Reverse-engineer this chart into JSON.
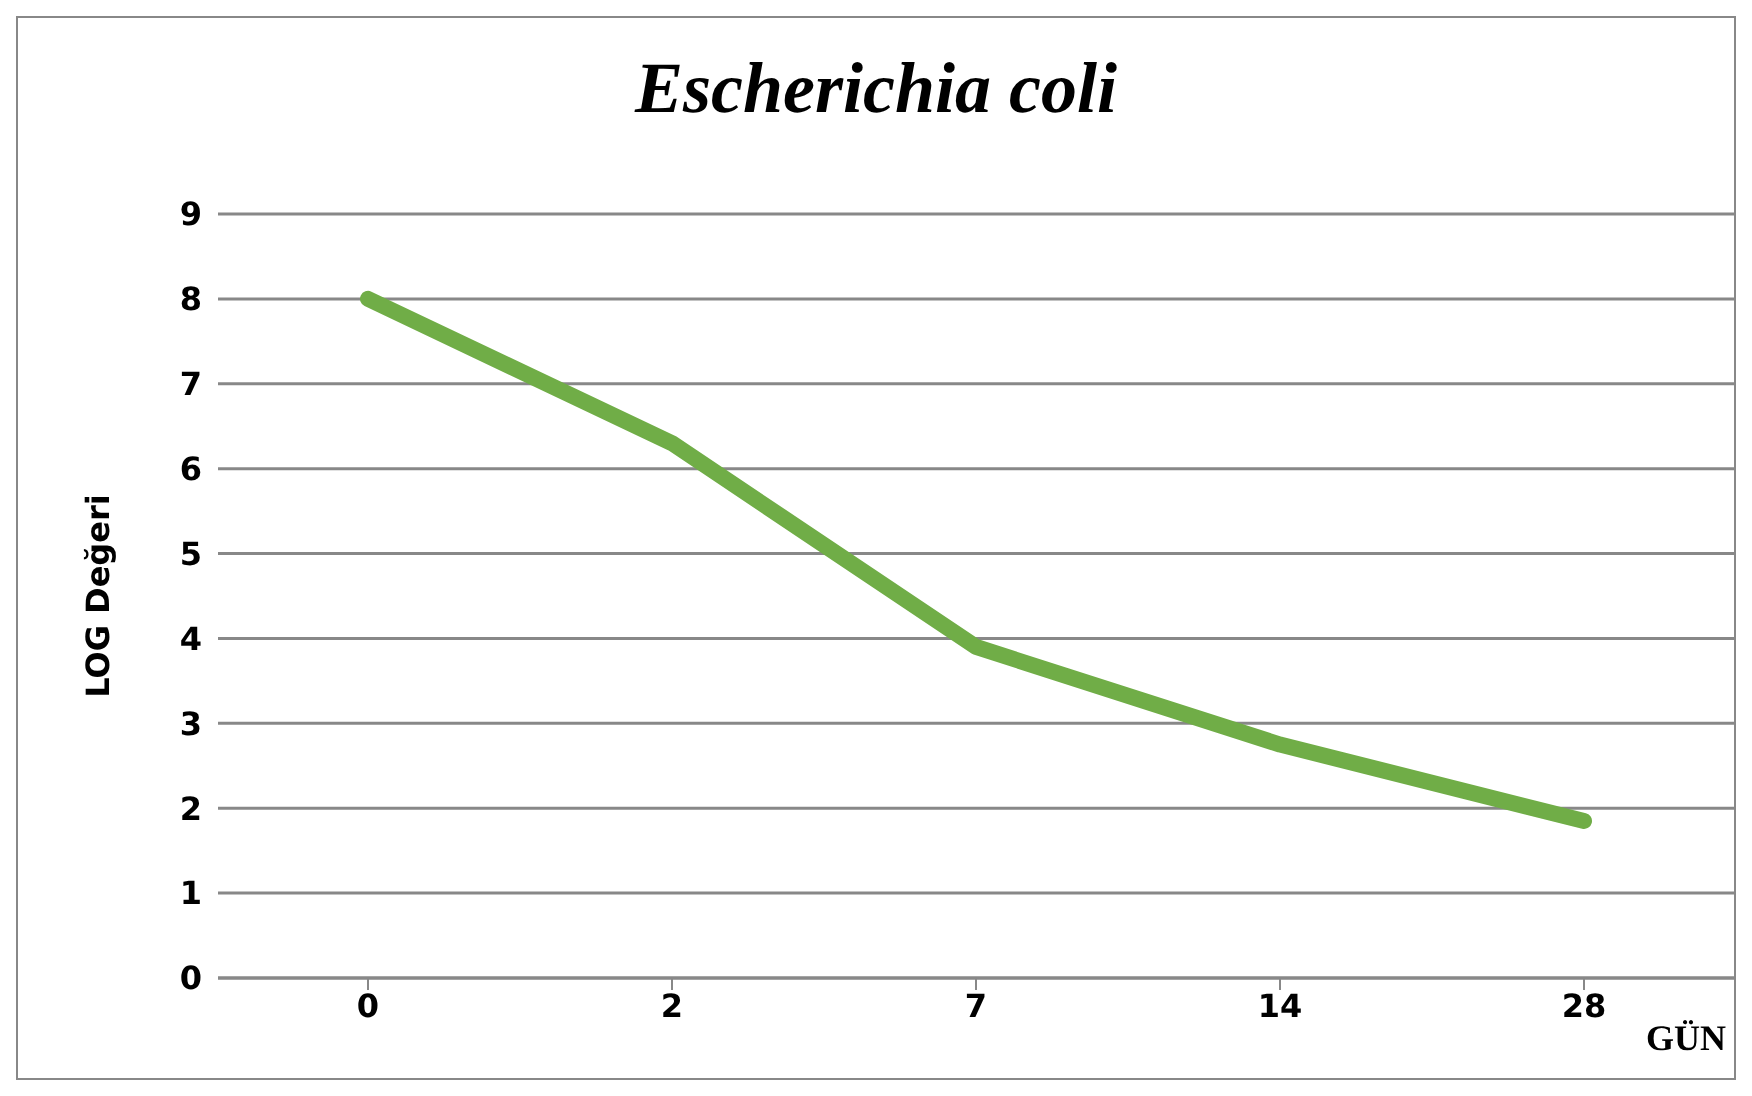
{
  "chart_data": {
    "type": "line",
    "title": "Escherichia coli",
    "xlabel": "GÜN",
    "ylabel": "LOG Değeri",
    "categories": [
      "0",
      "2",
      "7",
      "14",
      "28"
    ],
    "series": [
      {
        "color": "#70ad47",
        "values": [
          8.0,
          6.3,
          3.9,
          2.75,
          1.85
        ]
      }
    ],
    "ylim": [
      0,
      9
    ],
    "yticks": [
      0,
      1,
      2,
      3,
      4,
      5,
      6,
      7,
      8,
      9
    ],
    "grid": "y",
    "legend": false,
    "marker": "none",
    "line_style": "solid"
  }
}
